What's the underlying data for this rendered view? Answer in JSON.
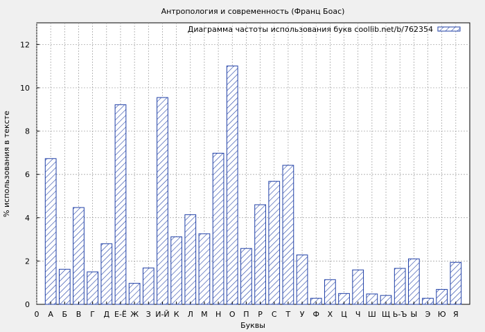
{
  "chart_data": {
    "type": "bar",
    "title": "Антропология и современность (Франц Боас)",
    "xlabel": "Буквы",
    "ylabel": "% использования в тексте",
    "legend": "Диаграмма частоты использования букв coollib.net/b/762354",
    "legend_position": "top-right",
    "grid": true,
    "ylim": [
      0,
      13
    ],
    "yticks": [
      0,
      2,
      4,
      6,
      8,
      10,
      12
    ],
    "x_start_label": "0",
    "categories": [
      "А",
      "Б",
      "В",
      "Г",
      "Д",
      "Е-Ё",
      "Ж",
      "З",
      "И-Й",
      "К",
      "Л",
      "М",
      "Н",
      "О",
      "П",
      "Р",
      "С",
      "Т",
      "У",
      "Ф",
      "Х",
      "Ц",
      "Ч",
      "Ш",
      "Щ",
      "Ь-Ъ",
      "Ы",
      "Э",
      "Ю",
      "Я"
    ],
    "values": [
      6.73,
      1.62,
      4.47,
      1.5,
      2.8,
      9.22,
      0.97,
      1.68,
      9.55,
      3.12,
      4.14,
      3.26,
      6.98,
      11.01,
      2.58,
      4.6,
      5.68,
      6.42,
      2.28,
      0.28,
      1.14,
      0.5,
      1.59,
      0.48,
      0.41,
      1.66,
      2.1,
      0.28,
      0.69,
      1.94
    ],
    "colors": {
      "bar_stroke": "#1f3fa6",
      "background": "#f0f0f0",
      "grid": "#9a9a9a"
    }
  }
}
